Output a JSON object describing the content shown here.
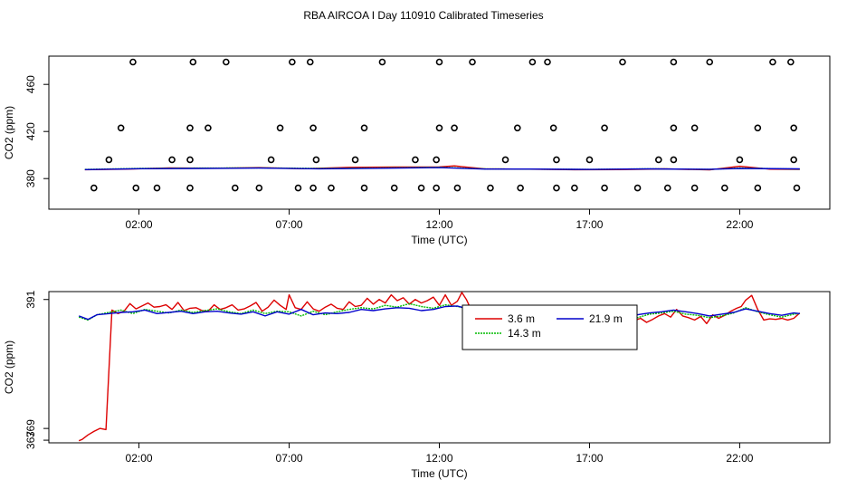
{
  "title": "RBA AIRCOA I  Day 110910  Calibrated Timeseries",
  "chart_data": [
    {
      "type": "line",
      "xlabel": "Time (UTC)",
      "ylabel": "CO2 (ppm)",
      "xlim": [
        -1.0,
        25.0
      ],
      "ylim": [
        354.0,
        484.0
      ],
      "xticks": [
        2,
        7,
        12,
        17,
        22
      ],
      "xtick_labels": [
        "02:00",
        "07:00",
        "12:00",
        "17:00",
        "22:00"
      ],
      "yticks": [
        380,
        420,
        460
      ],
      "ytick_labels": [
        "380",
        "420",
        "460"
      ],
      "series": [
        {
          "color": "#dd0000",
          "x": [
            0.2,
            1.5,
            3.0,
            4.5,
            6.0,
            7.5,
            9.0,
            10.5,
            12.0,
            12.5,
            13.5,
            15.0,
            16.5,
            18.0,
            19.5,
            21.0,
            22.0,
            23.0,
            24.0
          ],
          "values": [
            387.5,
            388.0,
            389.0,
            388.8,
            389.3,
            388.4,
            389.5,
            389.8,
            389.9,
            390.8,
            388.3,
            388.0,
            387.5,
            387.6,
            388.2,
            387.4,
            390.5,
            388.0,
            387.8
          ]
        },
        {
          "color": "#00bb00",
          "x": [
            0.2,
            2.0,
            4.0,
            6.0,
            8.0,
            10.0,
            12.0,
            13.5,
            15.0,
            17.0,
            19.0,
            21.0,
            22.0,
            24.0
          ],
          "values": [
            387.8,
            388.6,
            388.9,
            389.1,
            388.6,
            389.0,
            389.6,
            388.2,
            388.0,
            387.8,
            388.3,
            387.8,
            389.0,
            388.0
          ]
        },
        {
          "color": "#0000cc",
          "x": [
            0.2,
            2.0,
            4.0,
            6.0,
            8.0,
            10.0,
            12.0,
            13.5,
            15.0,
            17.0,
            19.0,
            21.0,
            22.0,
            24.0
          ],
          "values": [
            387.6,
            388.4,
            388.6,
            388.9,
            388.3,
            388.8,
            389.3,
            388.1,
            388.1,
            387.8,
            388.2,
            387.9,
            388.6,
            388.2
          ]
        }
      ],
      "outliers": {
        "x": [
          0.5,
          1.9,
          2.6,
          3.7,
          5.2,
          6.0,
          7.3,
          7.8,
          8.4,
          9.5,
          10.5,
          11.4,
          11.9,
          12.6,
          13.7,
          14.7,
          15.9,
          16.5,
          17.5,
          18.6,
          19.6,
          20.5,
          21.5,
          22.6,
          23.9,
          1.0,
          3.1,
          3.7,
          6.4,
          7.9,
          9.2,
          11.2,
          11.9,
          14.2,
          15.9,
          17.0,
          19.3,
          19.8,
          22.0,
          23.8,
          1.4,
          3.7,
          4.3,
          6.7,
          7.8,
          9.5,
          12.0,
          12.5,
          14.6,
          15.8,
          17.5,
          19.8,
          20.5,
          22.6,
          23.8,
          1.8,
          3.8,
          4.9,
          7.1,
          7.7,
          10.1,
          12.0,
          13.1,
          15.1,
          15.6,
          18.1,
          19.8,
          21.0,
          23.1,
          23.7
        ],
        "values": [
          372,
          372,
          372,
          372,
          372,
          372,
          372,
          372,
          372,
          372,
          372,
          372,
          372,
          372,
          372,
          372,
          372,
          372,
          372,
          372,
          372,
          372,
          372,
          372,
          372,
          396,
          396,
          396,
          396,
          396,
          396,
          396,
          396,
          396,
          396,
          396,
          396,
          396,
          396,
          396,
          423,
          423,
          423,
          423,
          423,
          423,
          423,
          423,
          423,
          423,
          423,
          423,
          423,
          423,
          423,
          479,
          479,
          479,
          479,
          479,
          479,
          479,
          479,
          479,
          479,
          479,
          479,
          479,
          479,
          479
        ]
      }
    },
    {
      "type": "line",
      "xlabel": "Time (UTC)",
      "ylabel": "CO2 (ppm)",
      "xlim": [
        -1.0,
        25.0
      ],
      "ylim": [
        366.55,
        392.35
      ],
      "xticks": [
        2,
        7,
        12,
        17,
        22
      ],
      "xtick_labels": [
        "02:00",
        "07:00",
        "12:00",
        "17:00",
        "22:00"
      ],
      "yticks": [
        367,
        369,
        391
      ],
      "ytick_labels": [
        "367",
        "369",
        "391"
      ],
      "legend_position": "top-center",
      "series": [
        {
          "name": "3.6 m",
          "color": "#dd0000",
          "x": [
            0.0,
            0.1,
            0.3,
            0.5,
            0.7,
            0.9,
            1.1,
            1.3,
            1.5,
            1.7,
            1.9,
            2.1,
            2.3,
            2.5,
            2.7,
            2.9,
            3.1,
            3.3,
            3.5,
            3.7,
            3.9,
            4.1,
            4.3,
            4.5,
            4.7,
            4.9,
            5.1,
            5.3,
            5.5,
            5.7,
            5.9,
            6.1,
            6.3,
            6.5,
            6.7,
            6.9,
            7.0,
            7.2,
            7.4,
            7.6,
            7.8,
            8.0,
            8.2,
            8.4,
            8.6,
            8.8,
            9.0,
            9.2,
            9.4,
            9.6,
            9.8,
            10.0,
            10.2,
            10.4,
            10.6,
            10.8,
            11.0,
            11.2,
            11.4,
            11.6,
            11.8,
            12.0,
            12.2,
            12.4,
            12.6,
            12.75,
            12.9,
            13.1,
            13.3,
            13.5,
            13.7,
            13.9,
            14.1,
            14.3,
            14.5,
            14.7,
            14.9,
            15.1,
            15.3,
            15.5,
            15.7,
            15.9,
            16.1,
            16.3,
            16.5,
            16.7,
            16.9,
            17.1,
            17.3,
            17.5,
            17.7,
            17.9,
            18.1,
            18.3,
            18.5,
            18.7,
            18.9,
            19.1,
            19.3,
            19.5,
            19.7,
            19.9,
            20.1,
            20.3,
            20.5,
            20.7,
            20.9,
            21.1,
            21.3,
            21.5,
            21.7,
            21.9,
            22.05,
            22.2,
            22.4,
            22.6,
            22.8,
            23.0,
            23.2,
            23.4,
            23.6,
            23.8,
            24.0
          ],
          "values": [
            366.9,
            367.1,
            367.9,
            368.5,
            369.0,
            368.8,
            389.2,
            388.6,
            389.0,
            390.3,
            389.4,
            389.9,
            390.4,
            389.7,
            389.8,
            390.1,
            389.3,
            390.5,
            389.1,
            389.5,
            389.6,
            389.1,
            389.0,
            390.1,
            389.3,
            389.6,
            390.1,
            389.2,
            389.4,
            389.9,
            390.5,
            389.0,
            389.7,
            390.9,
            390.0,
            389.3,
            391.8,
            389.6,
            389.3,
            390.6,
            389.4,
            389.0,
            389.7,
            390.2,
            389.5,
            389.3,
            390.6,
            389.8,
            390.0,
            391.2,
            390.2,
            391.0,
            390.4,
            391.8,
            390.8,
            391.3,
            390.2,
            391.0,
            390.4,
            390.8,
            391.4,
            390.0,
            391.8,
            390.0,
            390.7,
            392.2,
            391.0,
            388.8,
            388.1,
            388.7,
            388.3,
            388.0,
            388.5,
            388.9,
            387.9,
            388.2,
            388.0,
            387.9,
            387.8,
            387.7,
            387.5,
            387.3,
            387.6,
            387.2,
            387.1,
            387.5,
            387.0,
            387.3,
            386.9,
            387.5,
            387.3,
            387.6,
            386.9,
            387.5,
            387.4,
            387.8,
            387.1,
            387.6,
            388.2,
            388.6,
            388.0,
            389.3,
            388.2,
            387.9,
            387.5,
            388.1,
            386.9,
            388.4,
            387.8,
            388.3,
            389.0,
            389.5,
            389.8,
            390.9,
            391.7,
            389.3,
            387.5,
            387.7,
            387.6,
            387.8,
            387.5,
            387.8,
            388.7
          ]
        },
        {
          "name": "14.3 m",
          "color": "#00bb00",
          "x": [
            0.0,
            0.3,
            0.6,
            1.0,
            1.4,
            1.8,
            2.2,
            2.6,
            3.0,
            3.4,
            3.8,
            4.2,
            4.6,
            5.0,
            5.4,
            5.8,
            6.2,
            6.6,
            7.0,
            7.4,
            7.8,
            8.2,
            8.6,
            9.0,
            9.4,
            9.8,
            10.2,
            10.6,
            11.0,
            11.4,
            11.8,
            12.2,
            12.6,
            13.0,
            13.4,
            13.8,
            14.2,
            14.6,
            15.0,
            15.4,
            15.8,
            16.2,
            16.6,
            17.0,
            17.4,
            17.8,
            18.2,
            18.6,
            19.0,
            19.4,
            19.8,
            20.2,
            20.6,
            21.0,
            21.4,
            21.8,
            22.2,
            22.6,
            23.0,
            23.4,
            23.8,
            24.0
          ],
          "values": [
            388.0,
            387.5,
            388.4,
            388.8,
            389.2,
            388.6,
            389.3,
            389.0,
            388.7,
            389.2,
            388.8,
            389.1,
            389.4,
            388.9,
            388.6,
            389.2,
            388.6,
            389.0,
            388.9,
            388.2,
            389.0,
            388.4,
            388.9,
            389.3,
            389.6,
            389.4,
            390.0,
            389.7,
            390.3,
            389.8,
            389.5,
            390.1,
            389.8,
            389.4,
            388.3,
            388.0,
            388.5,
            388.0,
            388.2,
            387.8,
            387.9,
            387.7,
            387.6,
            387.8,
            387.7,
            388.0,
            387.6,
            387.9,
            388.5,
            388.7,
            389.0,
            388.5,
            388.3,
            387.9,
            388.2,
            388.7,
            389.6,
            388.9,
            388.4,
            388.0,
            388.5,
            388.6
          ]
        },
        {
          "name": "21.9 m",
          "color": "#0000cc",
          "x": [
            0.0,
            0.3,
            0.6,
            1.0,
            1.4,
            1.8,
            2.2,
            2.6,
            3.0,
            3.4,
            3.8,
            4.2,
            4.6,
            5.0,
            5.4,
            5.8,
            6.2,
            6.6,
            7.0,
            7.4,
            7.8,
            8.2,
            8.6,
            9.0,
            9.4,
            9.8,
            10.2,
            10.6,
            11.0,
            11.4,
            11.8,
            12.2,
            12.6,
            13.0,
            13.4,
            13.8,
            14.2,
            14.6,
            15.0,
            15.4,
            15.8,
            16.2,
            16.6,
            17.0,
            17.4,
            17.8,
            18.2,
            18.6,
            19.0,
            19.4,
            19.8,
            20.2,
            20.6,
            21.0,
            21.4,
            21.8,
            22.2,
            22.6,
            23.0,
            23.4,
            23.8,
            24.0
          ],
          "values": [
            388.2,
            387.6,
            388.4,
            388.6,
            388.8,
            388.9,
            389.2,
            388.6,
            388.8,
            389.0,
            388.6,
            388.9,
            389.0,
            388.7,
            388.5,
            388.9,
            388.2,
            388.9,
            388.5,
            389.3,
            388.4,
            388.7,
            388.6,
            388.8,
            389.3,
            389.1,
            389.4,
            389.6,
            389.5,
            389.1,
            389.3,
            389.8,
            389.9,
            389.3,
            388.1,
            388.3,
            388.0,
            388.1,
            388.2,
            388.0,
            387.9,
            388.1,
            387.9,
            388.0,
            387.8,
            388.2,
            387.9,
            388.4,
            388.7,
            388.9,
            389.2,
            388.9,
            388.6,
            388.2,
            388.5,
            388.8,
            389.4,
            389.0,
            388.6,
            388.3,
            388.7,
            388.6
          ]
        }
      ]
    }
  ]
}
